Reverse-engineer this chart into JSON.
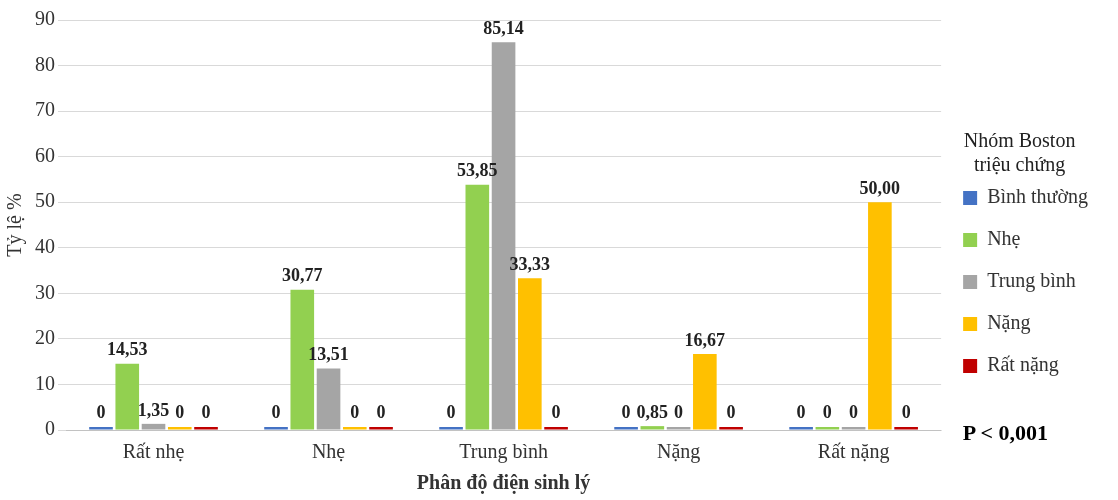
{
  "chart_data": {
    "type": "bar",
    "ylabel": "Tỷ lệ %",
    "xlabel": "Phân độ điện sinh lý",
    "legend_title": "Nhóm Boston triệu chứng",
    "legend": "right",
    "grid": "y",
    "categories": [
      "Rất nhẹ",
      "Nhẹ",
      "Trung bình",
      "Nặng",
      "Rất nặng"
    ],
    "ylim": [
      0,
      90
    ],
    "yticks": [
      0,
      10,
      20,
      30,
      40,
      50,
      60,
      70,
      80,
      90
    ],
    "series": [
      {
        "name": "Bình thường",
        "color": "#4472c4",
        "values": [
          0,
          0,
          0,
          0,
          0
        ],
        "value_labels": [
          "0",
          "0",
          "0",
          "0",
          "0"
        ]
      },
      {
        "name": "Nhẹ",
        "color": "#92d050",
        "values": [
          14.53,
          30.77,
          53.85,
          0.85,
          0
        ],
        "value_labels": [
          "14,53",
          "30,77",
          "53,85",
          "0,85",
          "0"
        ]
      },
      {
        "name": "Trung bình",
        "color": "#a5a5a5",
        "values": [
          1.35,
          13.51,
          85.14,
          0,
          0
        ],
        "value_labels": [
          "1,35",
          "13,51",
          "85,14",
          "0",
          "0"
        ]
      },
      {
        "name": "Nặng",
        "color": "#ffc000",
        "values": [
          0,
          0,
          33.33,
          16.67,
          50
        ],
        "value_labels": [
          "0",
          "0",
          "33,33",
          "16,67",
          "50,00"
        ]
      },
      {
        "name": "Rất nặng",
        "color": "#c00000",
        "values": [
          0,
          0,
          0,
          0,
          0
        ],
        "value_labels": [
          "0",
          "0",
          "0",
          "0",
          "0"
        ]
      }
    ],
    "annotations": [
      "P < 0,001"
    ]
  }
}
